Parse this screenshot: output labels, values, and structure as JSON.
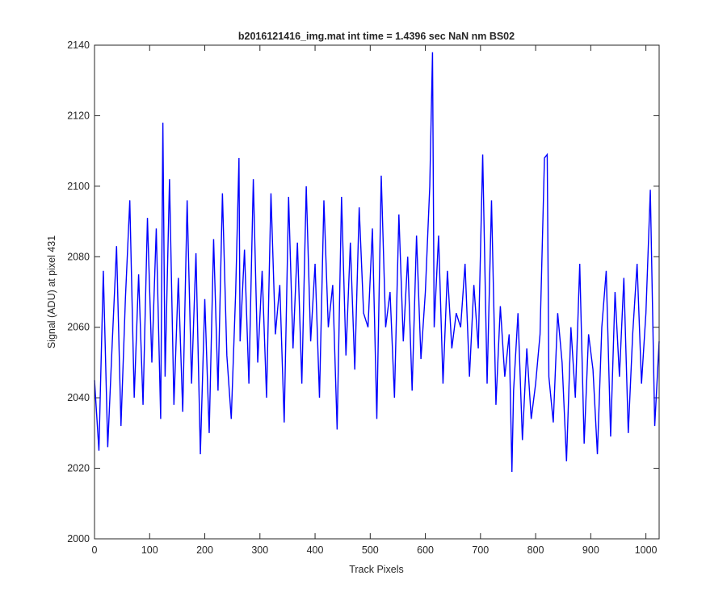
{
  "chart_data": {
    "type": "line",
    "title": "b2016121416_img.mat int time = 1.4396 sec  NaN nm BS02",
    "xlabel": "Track Pixels",
    "ylabel": "Signal (ADU) at pixel 431",
    "xlim": [
      0,
      1024
    ],
    "ylim": [
      2000,
      2140
    ],
    "xticks": [
      0,
      100,
      200,
      300,
      400,
      500,
      600,
      700,
      800,
      900,
      1000
    ],
    "yticks": [
      2000,
      2020,
      2040,
      2060,
      2080,
      2100,
      2120,
      2140
    ],
    "grid": false,
    "legend": "none",
    "series": [
      {
        "color": "#0000ff",
        "x": [
          0,
          8,
          16,
          24,
          32,
          40,
          48,
          56,
          64,
          72,
          80,
          88,
          96,
          104,
          112,
          120,
          124,
          128,
          136,
          144,
          152,
          160,
          168,
          176,
          184,
          192,
          200,
          208,
          216,
          224,
          232,
          240,
          248,
          256,
          262,
          264,
          272,
          280,
          288,
          296,
          304,
          312,
          320,
          328,
          336,
          344,
          352,
          360,
          368,
          376,
          384,
          392,
          400,
          408,
          416,
          424,
          432,
          440,
          448,
          456,
          464,
          472,
          480,
          488,
          496,
          504,
          512,
          520,
          528,
          536,
          544,
          552,
          560,
          568,
          576,
          584,
          592,
          600,
          608,
          613,
          616,
          624,
          632,
          640,
          648,
          656,
          664,
          672,
          680,
          688,
          696,
          704,
          712,
          720,
          728,
          736,
          744,
          752,
          757,
          760,
          768,
          776,
          784,
          792,
          800,
          808,
          816,
          821,
          824,
          832,
          840,
          848,
          856,
          864,
          872,
          880,
          888,
          896,
          904,
          912,
          920,
          928,
          936,
          944,
          952,
          960,
          968,
          976,
          984,
          992,
          1000,
          1008,
          1016,
          1024
        ],
        "y": [
          2045,
          2025,
          2076,
          2026,
          2055,
          2083,
          2032,
          2068,
          2096,
          2040,
          2075,
          2038,
          2091,
          2050,
          2088,
          2034,
          2118,
          2046,
          2102,
          2038,
          2074,
          2036,
          2096,
          2044,
          2081,
          2024,
          2068,
          2030,
          2085,
          2042,
          2098,
          2052,
          2034,
          2070,
          2108,
          2056,
          2082,
          2044,
          2102,
          2050,
          2076,
          2040,
          2098,
          2058,
          2072,
          2033,
          2097,
          2054,
          2084,
          2044,
          2100,
          2056,
          2078,
          2040,
          2096,
          2060,
          2072,
          2031,
          2097,
          2052,
          2084,
          2048,
          2094,
          2064,
          2060,
          2088,
          2034,
          2103,
          2060,
          2070,
          2040,
          2092,
          2056,
          2080,
          2042,
          2086,
          2051,
          2070,
          2100,
          2138,
          2060,
          2086,
          2044,
          2076,
          2054,
          2064,
          2060,
          2078,
          2046,
          2072,
          2054,
          2109,
          2044,
          2096,
          2038,
          2066,
          2046,
          2058,
          2019,
          2042,
          2064,
          2028,
          2054,
          2034,
          2044,
          2058,
          2108,
          2109,
          2046,
          2033,
          2064,
          2050,
          2022,
          2060,
          2040,
          2078,
          2027,
          2058,
          2048,
          2024,
          2060,
          2076,
          2029,
          2070,
          2046,
          2074,
          2030,
          2058,
          2078,
          2044,
          2064,
          2099,
          2032,
          2056
        ]
      }
    ]
  }
}
